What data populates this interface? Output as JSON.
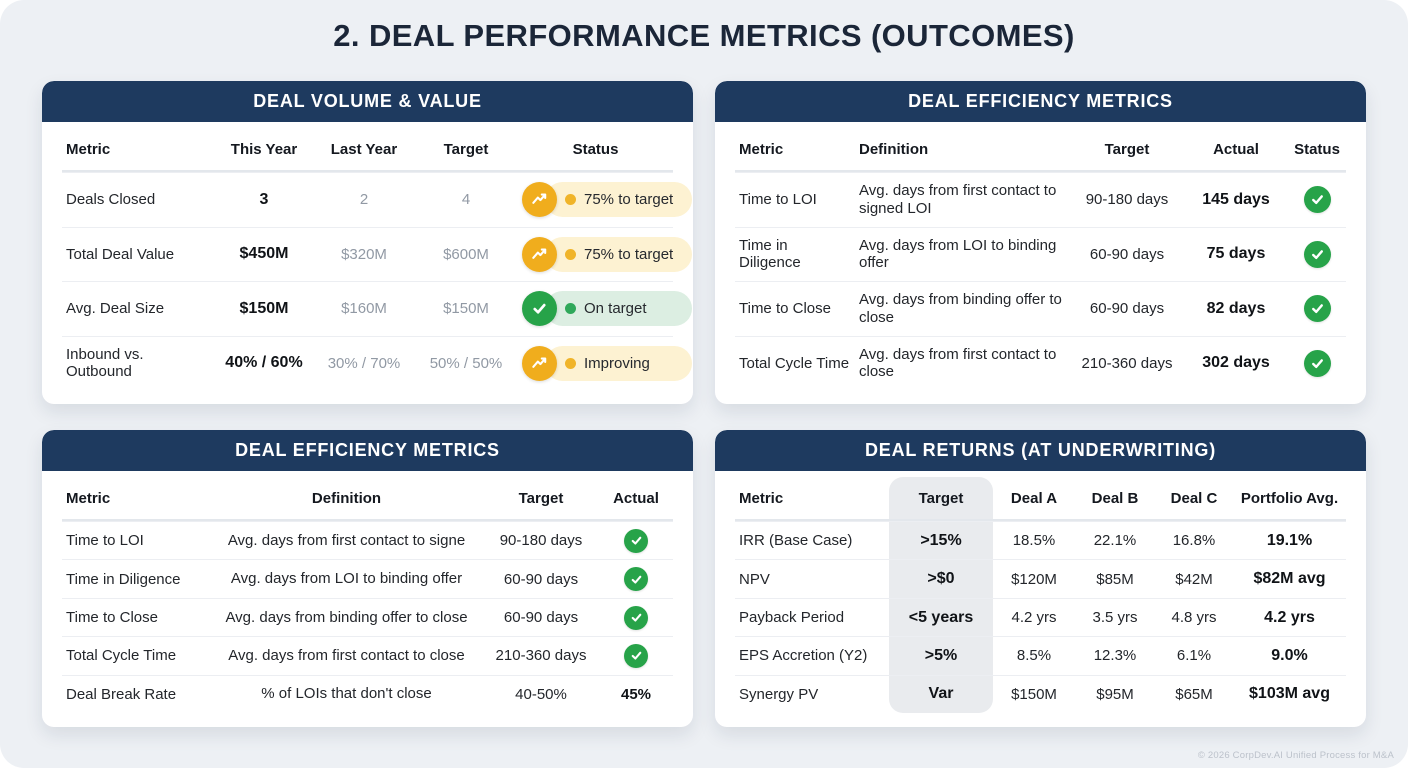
{
  "page": {
    "title": "2. DEAL PERFORMANCE METRICS (OUTCOMES)",
    "footer": "© 2026 CorpDev.AI Unified Process for M&A"
  },
  "colors": {
    "card_header_navy": "#1e3a5f",
    "title_navy": "#1b2638",
    "amber_icon": "#f0ad1d",
    "amber_pill_bg": "#fdf2d2",
    "green_icon": "#27a349",
    "green_pill_bg": "#dceee2",
    "muted_text": "#9199a4",
    "target_column_bg": "#e9ebee",
    "canvas_bg": "#edf0f4"
  },
  "cards": [
    {
      "title": "DEAL VOLUME & VALUE",
      "columns": [
        "Metric",
        "This Year",
        "Last Year",
        "Target",
        "Status"
      ],
      "rows": [
        [
          "Deals Closed",
          "3",
          "2",
          "4",
          {
            "badge": {
              "icon": "trend-up",
              "tone": "amber",
              "label": "75% to target"
            }
          }
        ],
        [
          "Total Deal Value",
          "$450M",
          "$320M",
          "$600M",
          {
            "badge": {
              "icon": "trend-up",
              "tone": "amber",
              "label": "75% to target"
            }
          }
        ],
        [
          "Avg. Deal Size",
          "$150M",
          "$160M",
          "$150M",
          {
            "badge": {
              "icon": "check",
              "tone": "green",
              "label": "On target"
            }
          }
        ],
        [
          "Inbound vs. Outbound",
          "40% / 60%",
          "30% / 70%",
          "50% / 50%",
          {
            "badge": {
              "icon": "trend-up",
              "tone": "amber",
              "label": "Improving"
            }
          }
        ]
      ]
    },
    {
      "title": "DEAL EFFICIENCY METRICS",
      "columns": [
        "Metric",
        "Definition",
        "Target",
        "Actual",
        "Status"
      ],
      "rows": [
        [
          "Time to LOI",
          "Avg. days from first contact to signed LOI",
          "90-180 days",
          "145 days",
          {
            "icon": "check"
          }
        ],
        [
          "Time in Diligence",
          "Avg. days from LOI to binding offer",
          "60-90 days",
          "75 days",
          {
            "icon": "check"
          }
        ],
        [
          "Time to Close",
          "Avg. days from binding offer to close",
          "60-90 days",
          "82 days",
          {
            "icon": "check"
          }
        ],
        [
          "Total Cycle Time",
          "Avg. days from first contact to close",
          "210-360 days",
          "302 days",
          {
            "icon": "check"
          }
        ]
      ]
    },
    {
      "title": "DEAL EFFICIENCY METRICS",
      "columns": [
        "Metric",
        "Definition",
        "Target",
        "Actual"
      ],
      "rows": [
        [
          "Time to LOI",
          "Avg. days from first contact to signe",
          "90-180 days",
          {
            "icon": "check"
          }
        ],
        [
          "Time in Diligence",
          "Avg. days from LOI to binding offer",
          "60-90 days",
          {
            "icon": "check"
          }
        ],
        [
          "Time to Close",
          "Avg. days from binding offer to close",
          "60-90 days",
          {
            "icon": "check"
          }
        ],
        [
          "Total Cycle Time",
          "Avg. days from first contact to close",
          "210-360 days",
          {
            "icon": "check"
          }
        ],
        [
          "Deal Break Rate",
          "% of LOIs that don't close",
          "40-50%",
          "45%"
        ]
      ]
    },
    {
      "title": "DEAL RETURNS (AT UNDERWRITING)",
      "columns": [
        "Metric",
        "Target",
        "Deal A",
        "Deal B",
        "Deal C",
        "Portfolio Avg."
      ],
      "rows": [
        [
          "IRR (Base Case)",
          ">15%",
          "18.5%",
          "22.1%",
          "16.8%",
          "19.1%"
        ],
        [
          "NPV",
          ">$0",
          "$120M",
          "$85M",
          "$42M",
          "$82M avg"
        ],
        [
          "Payback Period",
          "<5 years",
          "4.2 yrs",
          "3.5 yrs",
          "4.8 yrs",
          "4.2 yrs"
        ],
        [
          "EPS Accretion (Y2)",
          ">5%",
          "8.5%",
          "12.3%",
          "6.1%",
          "9.0%"
        ],
        [
          "Synergy PV",
          "Var",
          "$150M",
          "$95M",
          "$65M",
          "$103M avg"
        ]
      ]
    }
  ]
}
